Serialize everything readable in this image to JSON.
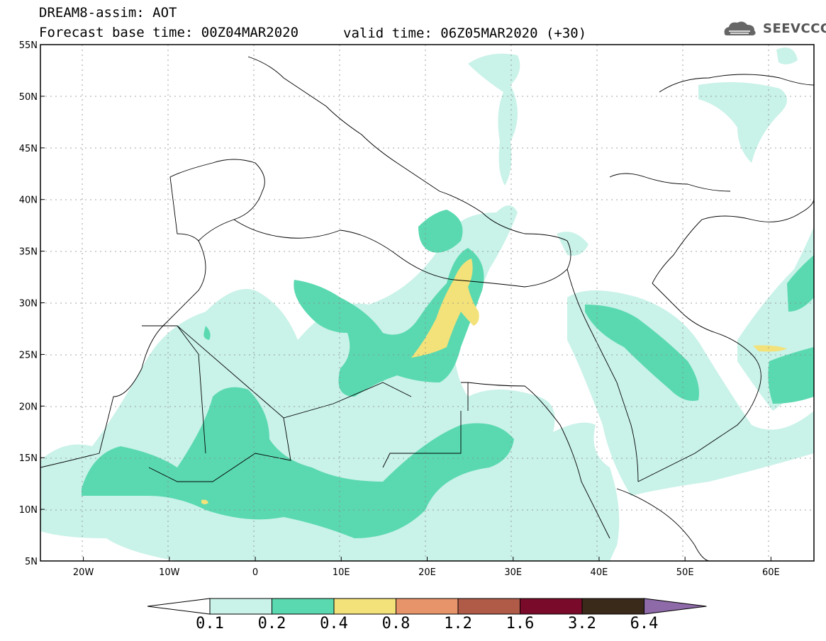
{
  "header": {
    "title": "DREAM8-assim: AOT",
    "base_time": "Forecast base time: 00Z04MAR2020",
    "valid_time": "valid time: 06Z05MAR2020 (+30)",
    "logo_text": "SEEVCCC"
  },
  "axes": {
    "lat_labels": [
      "55N",
      "50N",
      "45N",
      "40N",
      "35N",
      "30N",
      "25N",
      "20N",
      "15N",
      "10N",
      "5N"
    ],
    "lat_values": [
      55,
      50,
      45,
      40,
      35,
      30,
      25,
      20,
      15,
      10,
      5
    ],
    "lon_labels": [
      "20W",
      "10W",
      "0",
      "10E",
      "20E",
      "30E",
      "40E",
      "50E",
      "60E"
    ],
    "lon_values": [
      -20,
      -10,
      0,
      10,
      20,
      30,
      40,
      50,
      60
    ],
    "lon_range": [
      -25,
      65
    ],
    "lat_range": [
      5,
      55
    ],
    "grid": "dotted"
  },
  "legend": {
    "levels": [
      "0.1",
      "0.2",
      "0.4",
      "0.8",
      "1.2",
      "1.6",
      "3.2",
      "6.4"
    ],
    "colors": [
      "#c9f2e8",
      "#5ad9b0",
      "#f3e27a",
      "#e8946a",
      "#b05a48",
      "#7a0a2a",
      "#3a2a1a",
      "#8e6aa8"
    ]
  }
}
